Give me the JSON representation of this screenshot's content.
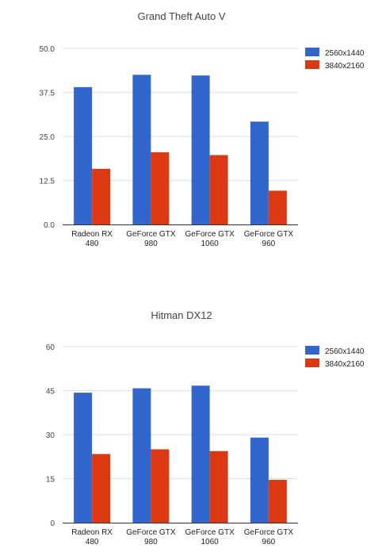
{
  "chart_data": [
    {
      "type": "bar",
      "title": "Grand Theft Auto V",
      "xlabel": "",
      "ylabel": "",
      "ylim": [
        0,
        50
      ],
      "yticks": [
        "0.0",
        "12.5",
        "25.0",
        "37.5",
        "50.0"
      ],
      "categories": [
        [
          "Radeon RX",
          "480"
        ],
        [
          "GeForce GTX",
          "980"
        ],
        [
          "GeForce GTX",
          "1060"
        ],
        [
          "GeForce GTX",
          "960"
        ]
      ],
      "series": [
        {
          "name": "2560x1440",
          "color": "#3366cc",
          "values": [
            39.0,
            42.5,
            42.3,
            29.2
          ]
        },
        {
          "name": "3840x2160",
          "color": "#dc3912",
          "values": [
            15.8,
            20.5,
            19.7,
            9.6
          ]
        }
      ],
      "legend": "right",
      "grid": true
    },
    {
      "type": "bar",
      "title": "Hitman DX12",
      "xlabel": "",
      "ylabel": "",
      "ylim": [
        0,
        60
      ],
      "yticks": [
        "0",
        "15",
        "30",
        "45",
        "60"
      ],
      "categories": [
        [
          "Radeon RX",
          "480"
        ],
        [
          "GeForce GTX",
          "980"
        ],
        [
          "GeForce GTX",
          "1060"
        ],
        [
          "GeForce GTX",
          "960"
        ]
      ],
      "series": [
        {
          "name": "2560x1440",
          "color": "#3366cc",
          "values": [
            44.3,
            45.8,
            46.7,
            29.0
          ]
        },
        {
          "name": "3840x2160",
          "color": "#dc3912",
          "values": [
            23.4,
            25.0,
            24.4,
            14.6
          ]
        }
      ],
      "legend": "right",
      "grid": true
    }
  ]
}
